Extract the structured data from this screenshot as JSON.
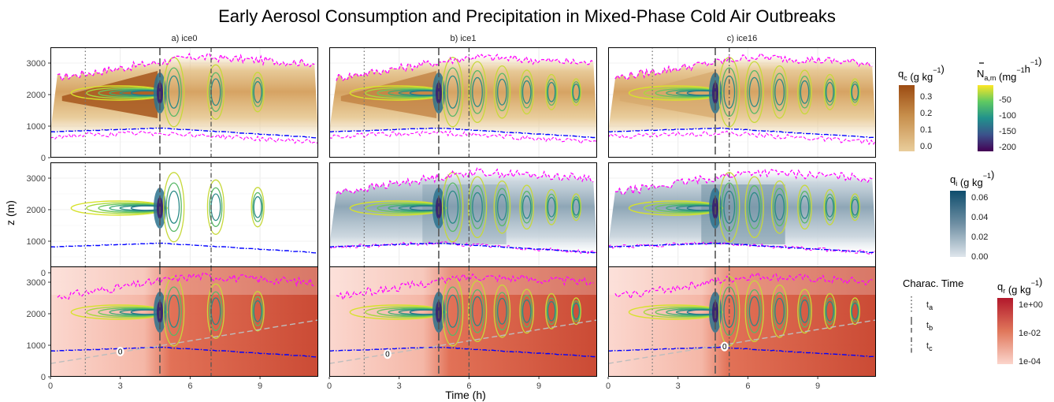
{
  "chart_data": {
    "type": "heatmap",
    "title": "Early Aerosol Consumption and Precipitation in Mixed-Phase Cold Air Outbreaks",
    "xlabel": "Time (h)",
    "ylabel": "z (m)",
    "xlim": [
      0,
      11.5
    ],
    "ylim": [
      0,
      3500
    ],
    "x_ticks": [
      0,
      3,
      6,
      9
    ],
    "y_ticks": [
      0,
      1000,
      2000,
      3000
    ],
    "columns": [
      {
        "label": "a) ice0",
        "t_a": 1.5,
        "t_b": 4.7,
        "t_c": 6.9
      },
      {
        "label": "b) ice1",
        "t_a": 1.5,
        "t_b": 4.7,
        "t_c": 6.0
      },
      {
        "label": "c) ice16",
        "t_a": 1.9,
        "t_b": 4.6,
        "t_c": 5.2
      }
    ],
    "rows": [
      {
        "variable": "qc"
      },
      {
        "variable": "qi"
      },
      {
        "variable": "qr"
      }
    ],
    "zero_labels": [
      {
        "column": 0,
        "t": 3.0,
        "z": 800,
        "text": "0"
      },
      {
        "column": 1,
        "t": 2.5,
        "z": 720,
        "text": "0"
      },
      {
        "column": 2,
        "t": 5.0,
        "z": 960,
        "text": "0"
      }
    ],
    "legends": {
      "qc": {
        "title_main": "q",
        "title_sub": "c",
        "title_rest": " (g kg",
        "title_sup": "−1",
        "title_end": ")",
        "ticks": [
          "0.3",
          "0.2",
          "0.1",
          "0.0"
        ],
        "colors": [
          "#9c4b12",
          "#c68d4a",
          "#e9cd9b"
        ]
      },
      "na": {
        "title_main": "N",
        "title_sub": "a,m",
        "title_rest": " (mg",
        "title_sup": "−1",
        "title_mid": "h",
        "title_sup2": "−1",
        "title_end": ")",
        "ticks": [
          "-50",
          "-100",
          "-150",
          "-200"
        ],
        "colors": [
          "#fde725",
          "#5ec962",
          "#21918c",
          "#3b528b",
          "#440154"
        ]
      },
      "qi": {
        "title_main": "q",
        "title_sub": "i",
        "title_rest": " (g kg",
        "title_sup": "−1",
        "title_end": ")",
        "ticks": [
          "0.06",
          "0.04",
          "0.02",
          "0.00"
        ],
        "colors": [
          "#0e4d6d",
          "#6f8fa3",
          "#dfe6ec"
        ]
      },
      "qr": {
        "title_main": "q",
        "title_sub": "r",
        "title_rest": " (g kg",
        "title_sup": "−1",
        "title_end": ")",
        "ticks": [
          "1e+00",
          "1e-02",
          "1e-04"
        ],
        "colors": [
          "#b2182b",
          "#e0775b",
          "#fbd5cc"
        ]
      },
      "charac": {
        "title": "Charac. Time",
        "items": [
          {
            "main": "t",
            "sub": "a"
          },
          {
            "main": "t",
            "sub": "b"
          },
          {
            "main": "t",
            "sub": "c"
          }
        ]
      }
    },
    "colors": {
      "cloud_top": "#ff00ff",
      "cloud_base": "#0000ff",
      "freezing": "#bdbdbd",
      "frame": "#000000"
    }
  }
}
